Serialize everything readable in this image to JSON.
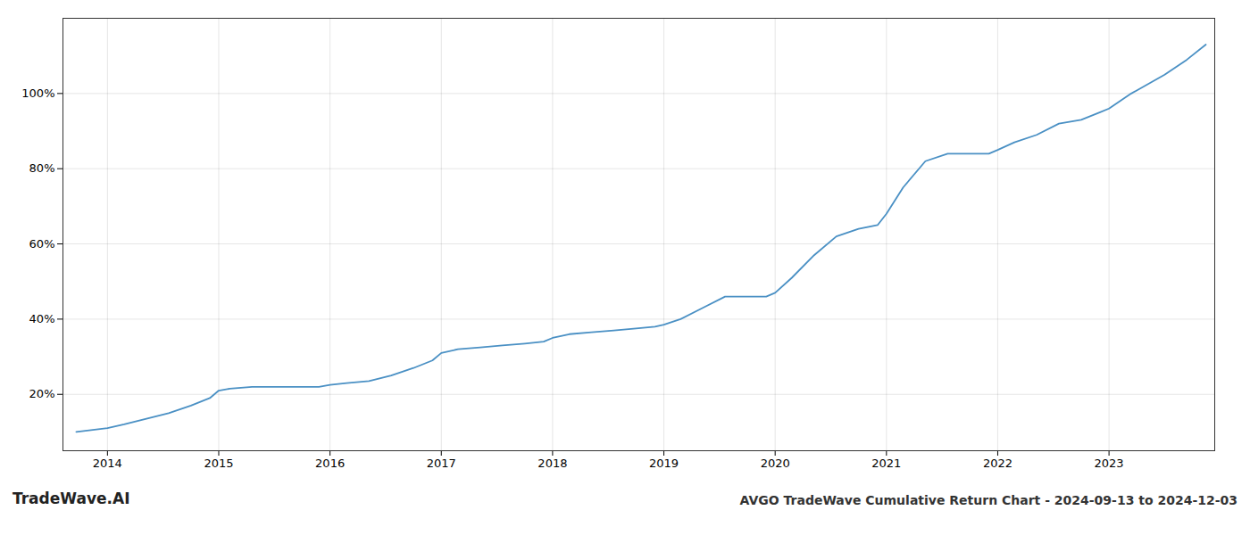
{
  "chart_data": {
    "type": "line",
    "title": "AVGO TradeWave Cumulative Return Chart - 2024-09-13 to 2024-12-03",
    "annotations": [
      "TradeWave.AI"
    ],
    "x": [
      2013.72,
      2014.0,
      2014.15,
      2014.35,
      2014.55,
      2014.75,
      2014.92,
      2015.0,
      2015.1,
      2015.3,
      2015.5,
      2015.7,
      2015.9,
      2016.0,
      2016.15,
      2016.35,
      2016.55,
      2016.75,
      2016.92,
      2017.0,
      2017.15,
      2017.35,
      2017.55,
      2017.75,
      2017.92,
      2018.0,
      2018.15,
      2018.35,
      2018.55,
      2018.75,
      2018.92,
      2019.0,
      2019.15,
      2019.35,
      2019.55,
      2019.75,
      2019.92,
      2020.0,
      2020.15,
      2020.35,
      2020.55,
      2020.75,
      2020.92,
      2021.0,
      2021.15,
      2021.35,
      2021.55,
      2021.75,
      2021.92,
      2022.0,
      2022.15,
      2022.35,
      2022.55,
      2022.75,
      2022.92,
      2023.0,
      2023.2,
      2023.5,
      2023.7,
      2023.87
    ],
    "values": [
      10,
      11,
      12,
      13.5,
      15,
      17,
      19,
      21,
      21.5,
      22,
      22,
      22,
      22,
      22.5,
      23,
      23.5,
      25,
      27,
      29,
      31,
      32,
      32.5,
      33,
      33.5,
      34,
      35,
      36,
      36.5,
      37,
      37.5,
      38,
      38.5,
      40,
      43,
      46,
      46,
      46,
      47,
      51,
      57,
      62,
      64,
      65,
      68,
      75,
      82,
      84,
      84,
      84,
      85,
      87,
      89,
      92,
      93,
      95,
      96,
      100,
      105,
      109,
      113
    ],
    "color": "#4a90c4",
    "xlim": [
      2013.6,
      2023.95
    ],
    "xticks": [
      2014,
      2015,
      2016,
      2017,
      2018,
      2019,
      2020,
      2021,
      2022,
      2023
    ],
    "ylim": [
      5,
      120
    ],
    "yticks": [
      {
        "value": 20,
        "label": "20%"
      },
      {
        "value": 40,
        "label": "40%"
      },
      {
        "value": 60,
        "label": "60%"
      },
      {
        "value": 80,
        "label": "80%"
      },
      {
        "value": 100,
        "label": "100%"
      }
    ],
    "grid": true
  }
}
